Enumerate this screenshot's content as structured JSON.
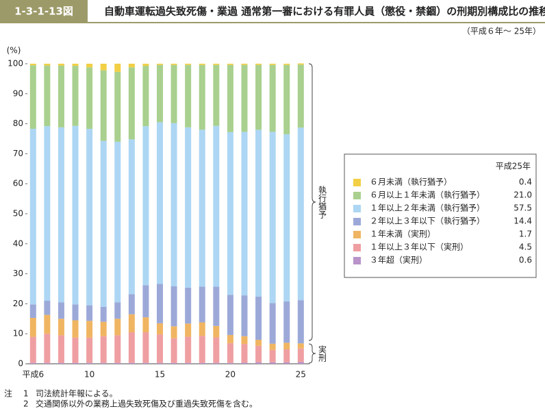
{
  "header": {
    "code": "1-3-1-13図",
    "title": "自動車運転過失致死傷・業過 通常第一審における有罪人員（懲役・禁錮）の刑期別構成比の推移",
    "subtitle": "（平成６年～ 25年）"
  },
  "chart_data": {
    "type": "stacked-bar",
    "y_unit": "(%)",
    "categories": [
      "平成6",
      null,
      null,
      null,
      "10",
      null,
      null,
      null,
      null,
      "15",
      null,
      null,
      null,
      null,
      "20",
      null,
      null,
      null,
      null,
      "25"
    ],
    "ylim": [
      0,
      100
    ],
    "yticks": [
      0,
      10,
      20,
      30,
      40,
      50,
      60,
      70,
      80,
      90,
      100
    ],
    "legend_title": "平成25年",
    "series": [
      {
        "name": "６月未満（執行猶予）",
        "color": "#f2cf45",
        "legend_value": "0.4",
        "values": [
          0.5,
          0.6,
          0.6,
          0.7,
          1.2,
          2.2,
          2.7,
          1.2,
          0.7,
          0.4,
          0.4,
          0.4,
          0.4,
          0.4,
          0.4,
          0.4,
          0.4,
          0.4,
          0.4,
          0.4
        ]
      },
      {
        "name": "６月以上１年未満（執行猶予）",
        "color": "#a9d08e",
        "legend_value": "21.0",
        "values": [
          21.2,
          20.2,
          20.6,
          20.0,
          20.5,
          23.5,
          23.3,
          24.0,
          20.1,
          19.1,
          19.4,
          20.8,
          21.6,
          20.3,
          22.4,
          22.3,
          21.6,
          22.3,
          23.1,
          21.0
        ]
      },
      {
        "name": "１年以上２年未満（執行猶予）",
        "color": "#acd6f3",
        "legend_value": "57.5",
        "values": [
          58.5,
          58.2,
          58.3,
          59.5,
          58.8,
          55.3,
          53.5,
          51.6,
          53.0,
          53.9,
          54.4,
          53.4,
          52.3,
          53.6,
          54.2,
          54.5,
          55.6,
          57.1,
          55.7,
          57.5
        ]
      },
      {
        "name": "２年以上３年以下（執行猶予）",
        "color": "#9ca9d8",
        "legend_value": "14.4",
        "values": [
          4.5,
          4.7,
          5.5,
          5.3,
          5.2,
          5.0,
          5.5,
          6.7,
          10.7,
          13.1,
          13.3,
          12.0,
          11.9,
          13.1,
          13.4,
          13.6,
          14.4,
          13.5,
          13.8,
          14.4
        ]
      },
      {
        "name": "１年未満（実刑）",
        "color": "#f0b562",
        "legend_value": "1.7",
        "values": [
          6.3,
          6.3,
          5.5,
          5.8,
          5.6,
          4.8,
          5.5,
          6.0,
          5.0,
          3.7,
          4.0,
          4.4,
          4.5,
          3.8,
          2.7,
          2.6,
          2.0,
          2.1,
          2.2,
          1.7
        ]
      },
      {
        "name": "１年以上３年以下（実刑）",
        "color": "#ef9fa2",
        "legend_value": "4.5",
        "values": [
          8.7,
          9.7,
          9.2,
          8.4,
          8.4,
          8.9,
          9.2,
          10.2,
          10.2,
          9.5,
          8.2,
          8.7,
          9.0,
          8.5,
          6.6,
          6.2,
          5.5,
          4.1,
          4.3,
          4.5
        ]
      },
      {
        "name": "３年超（実刑）",
        "color": "#b993c9",
        "legend_value": "0.6",
        "values": [
          0.3,
          0.3,
          0.3,
          0.3,
          0.3,
          0.3,
          0.3,
          0.3,
          0.3,
          0.3,
          0.3,
          0.3,
          0.3,
          0.3,
          0.3,
          0.4,
          0.5,
          0.5,
          0.5,
          0.6
        ]
      }
    ],
    "annotations": [
      "執行猶予",
      "実刑"
    ]
  },
  "notes": {
    "label": "注",
    "items": [
      {
        "number": "1",
        "text": "司法統計年報による。"
      },
      {
        "number": "2",
        "text": "交通関係以外の業務上過失致死傷及び重過失致死傷を含む。"
      }
    ]
  }
}
